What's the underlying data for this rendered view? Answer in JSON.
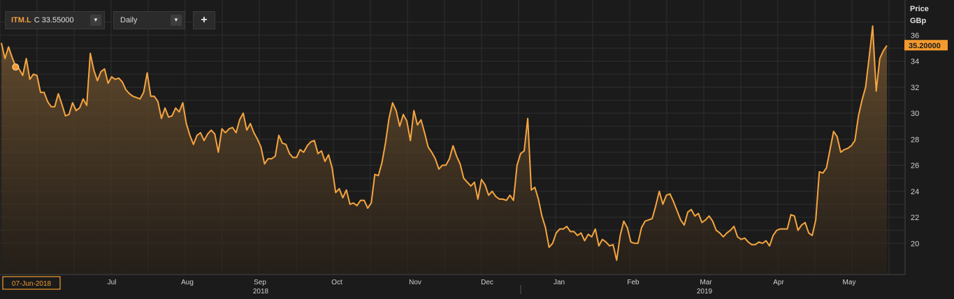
{
  "toolbar": {
    "symbol": "ITM.L",
    "close_prefix": "C",
    "close_value": "33.55000",
    "interval": "Daily",
    "dropdown_icon": "triangle-down",
    "add_icon": "plus"
  },
  "colors": {
    "background": "#1b1b1b",
    "grid": "#2f2f2f",
    "line": "#f5a540",
    "accent": "#f39a2e",
    "text": "#d0d0d0"
  },
  "chart_data": {
    "type": "area",
    "ylabel": [
      "Price",
      "GBp"
    ],
    "y_ticks": [
      20,
      22,
      24,
      26,
      28,
      30,
      32,
      34,
      36
    ],
    "ylim": [
      17.6,
      38.7
    ],
    "last_price_label": "35.20000",
    "last_price": 35.2,
    "cursor_date_label": "07-Jun-2018",
    "cursor_value": 33.55,
    "month_labels": [
      "Jul",
      "Aug",
      "Sep",
      "Oct",
      "Nov",
      "Dec",
      "Jan",
      "Feb",
      "Mar",
      "Apr",
      "May"
    ],
    "year_labels": [
      "2018",
      "2019"
    ],
    "grid": true,
    "values": [
      35.4,
      34.2,
      35.1,
      34.3,
      33.6,
      33.4,
      32.9,
      34.2,
      32.6,
      33.0,
      32.9,
      31.6,
      31.6,
      30.9,
      30.5,
      30.5,
      31.5,
      30.7,
      29.8,
      29.9,
      30.8,
      30.2,
      30.4,
      31.1,
      30.6,
      34.6,
      33.3,
      32.5,
      33.2,
      33.4,
      32.3,
      32.8,
      32.6,
      32.7,
      32.4,
      31.8,
      31.5,
      31.3,
      31.2,
      31.1,
      31.6,
      33.1,
      31.3,
      31.3,
      30.9,
      29.6,
      30.4,
      29.7,
      29.8,
      30.4,
      30.1,
      30.8,
      29.2,
      28.3,
      27.6,
      28.3,
      28.5,
      27.9,
      28.4,
      28.7,
      28.4,
      27.0,
      28.8,
      28.5,
      28.8,
      28.9,
      28.5,
      29.5,
      30.0,
      28.7,
      29.2,
      28.5,
      28.0,
      27.4,
      26.1,
      26.5,
      26.5,
      26.7,
      28.3,
      27.7,
      27.6,
      26.9,
      26.6,
      26.6,
      27.2,
      27.0,
      27.5,
      27.8,
      27.9,
      26.9,
      27.1,
      26.3,
      26.8,
      25.8,
      23.9,
      24.2,
      23.5,
      24.1,
      23.0,
      23.1,
      22.9,
      23.3,
      23.3,
      22.7,
      23.1,
      25.3,
      25.2,
      26.2,
      27.7,
      29.6,
      30.8,
      30.2,
      29.0,
      29.9,
      29.4,
      27.9,
      30.2,
      29.1,
      29.5,
      28.5,
      27.4,
      27.0,
      26.5,
      25.7,
      26.0,
      26.0,
      26.5,
      27.5,
      26.7,
      26.1,
      25.0,
      24.7,
      24.4,
      24.7,
      23.4,
      24.9,
      24.5,
      23.7,
      24.0,
      23.6,
      23.4,
      23.4,
      23.3,
      23.7,
      23.3,
      26.0,
      26.9,
      27.1,
      29.6,
      24.1,
      24.3,
      23.4,
      22.1,
      21.2,
      19.7,
      20.0,
      20.8,
      21.1,
      21.1,
      21.3,
      20.9,
      20.9,
      20.6,
      20.8,
      20.2,
      20.7,
      20.5,
      21.1,
      19.8,
      20.3,
      20.1,
      19.8,
      19.9,
      18.7,
      20.6,
      21.7,
      21.2,
      20.1,
      20.0,
      20.0,
      21.2,
      21.7,
      21.8,
      21.9,
      22.9,
      24.0,
      23.0,
      23.7,
      23.8,
      23.2,
      22.5,
      21.8,
      21.4,
      22.4,
      22.6,
      22.1,
      22.3,
      21.6,
      21.8,
      22.1,
      21.7,
      21.0,
      20.8,
      20.5,
      20.8,
      21.0,
      21.3,
      20.5,
      20.3,
      20.4,
      20.1,
      19.9,
      19.9,
      20.1,
      20.0,
      20.2,
      19.8,
      20.6,
      21.0,
      21.1,
      21.1,
      21.1,
      22.2,
      22.1,
      21.0,
      21.4,
      21.6,
      20.8,
      20.6,
      21.8,
      25.5,
      25.4,
      25.8,
      27.2,
      28.6,
      28.2,
      27.0,
      27.2,
      27.3,
      27.5,
      27.9,
      29.8,
      31.0,
      32.0,
      34.3,
      36.7,
      31.7,
      34.2,
      34.8,
      35.2
    ]
  }
}
